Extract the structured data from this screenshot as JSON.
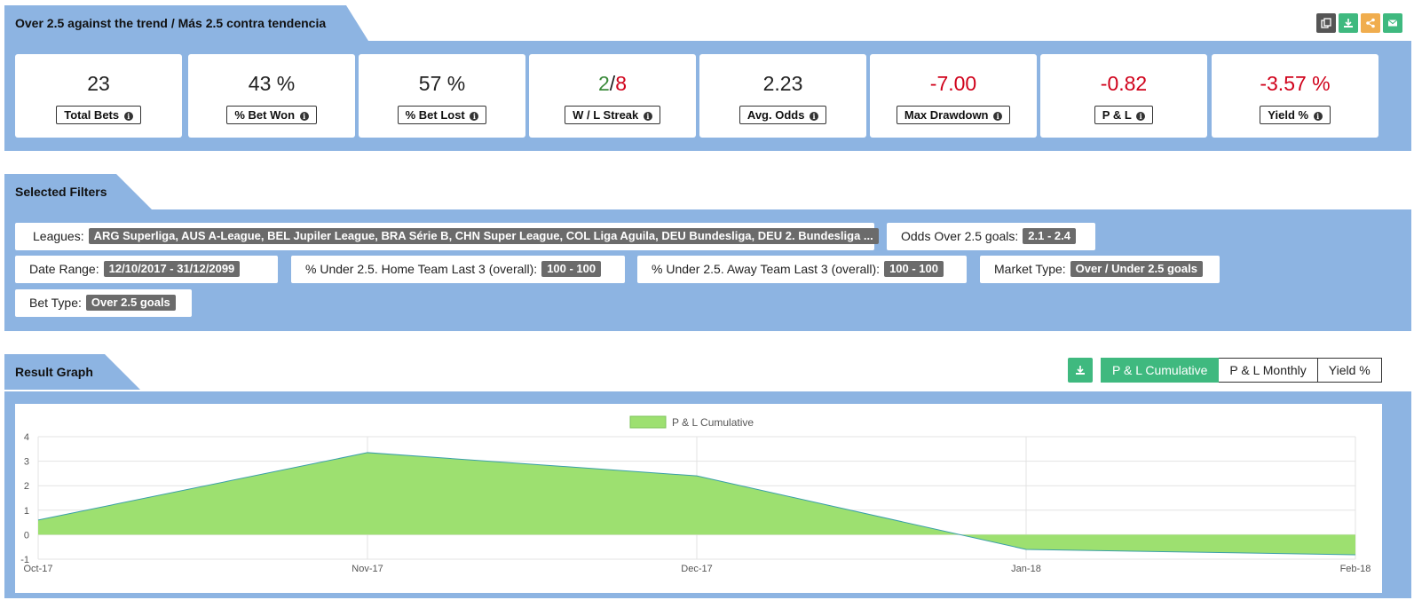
{
  "header": {
    "title": "Over 2.5 against the trend / Más 2.5 contra tendencia",
    "icons": [
      {
        "name": "copy-icon",
        "color": "#555555"
      },
      {
        "name": "download-icon",
        "color": "#3fb97f"
      },
      {
        "name": "share-icon",
        "color": "#f0ad4e"
      },
      {
        "name": "email-icon",
        "color": "#3fb97f"
      }
    ]
  },
  "stats": {
    "total_bets": {
      "value": "23",
      "label": "Total Bets"
    },
    "bet_won": {
      "value": "43 %",
      "label": "% Bet Won"
    },
    "bet_lost": {
      "value": "57 %",
      "label": "% Bet Lost"
    },
    "wl_streak": {
      "win": "2",
      "sep": "/",
      "loss": "8",
      "label": "W / L Streak"
    },
    "avg_odds": {
      "value": "2.23",
      "label": "Avg. Odds"
    },
    "max_drawdown": {
      "value": "-7.00",
      "label": "Max Drawdown"
    },
    "pl": {
      "value": "-0.82",
      "label": "P & L"
    },
    "yield": {
      "value": "-3.57 %",
      "label": "Yield %"
    }
  },
  "filters": {
    "title": "Selected Filters",
    "leagues": {
      "label": "Leagues:",
      "value": "ARG Superliga, AUS A-League, BEL Jupiler League, BRA Série B, CHN Super League, COL Liga Aguila, DEU Bundesliga, DEU 2. Bundesliga ..."
    },
    "odds_over": {
      "label": "Odds Over 2.5 goals:",
      "value": "2.1 - 2.4"
    },
    "date_range": {
      "label": "Date Range:",
      "value": "12/10/2017 - 31/12/2099"
    },
    "under_home": {
      "label": "% Under 2.5. Home Team Last 3 (overall):",
      "value": "100 - 100"
    },
    "under_away": {
      "label": "% Under 2.5. Away Team Last 3 (overall):",
      "value": "100 - 100"
    },
    "market_type": {
      "label": "Market Type:",
      "value": "Over / Under 2.5 goals"
    },
    "bet_type": {
      "label": "Bet Type:",
      "value": "Over 2.5 goals"
    }
  },
  "graph": {
    "title": "Result Graph",
    "buttons": {
      "cumulative": "P & L Cumulative",
      "monthly": "P & L Monthly",
      "yield": "Yield %"
    },
    "active_button": "cumulative"
  },
  "chart_data": {
    "type": "area",
    "legend": "P & L Cumulative",
    "legend_position": "top-center",
    "x": [
      "Oct-17",
      "Nov-17",
      "Dec-17",
      "Jan-18",
      "Feb-18"
    ],
    "series": [
      {
        "name": "P & L Cumulative",
        "values": [
          0.6,
          3.35,
          2.4,
          -0.6,
          -0.82
        ],
        "color": "#9de070"
      }
    ],
    "ylim": [
      -1,
      4
    ],
    "yticks": [
      -1,
      0,
      1,
      2,
      3,
      4
    ],
    "grid": true
  }
}
